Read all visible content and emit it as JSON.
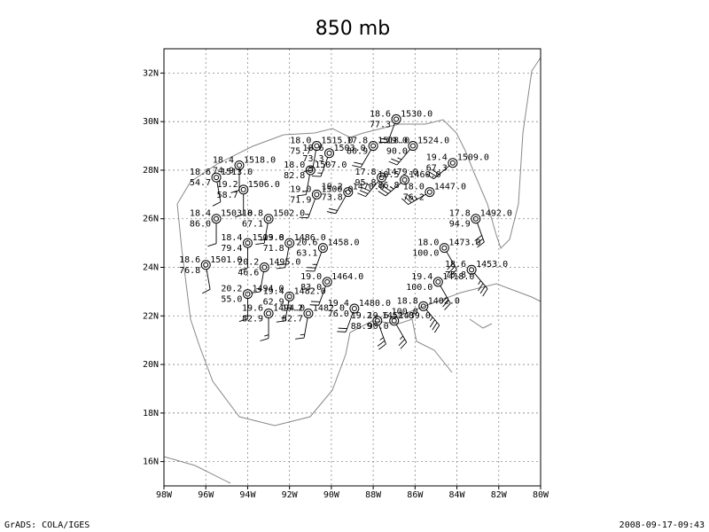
{
  "header": {
    "title": "850 mb"
  },
  "footer": {
    "left": "GrADS: COLA/IGES",
    "right": "2008-09-17-09:43"
  },
  "map": {
    "xlim": [
      -98,
      -80
    ],
    "ylim": [
      15,
      33
    ],
    "xticks": [
      {
        "value": -98,
        "label": "98W"
      },
      {
        "value": -96,
        "label": "96W"
      },
      {
        "value": -94,
        "label": "94W"
      },
      {
        "value": -92,
        "label": "92W"
      },
      {
        "value": -90,
        "label": "90W"
      },
      {
        "value": -88,
        "label": "88W"
      },
      {
        "value": -86,
        "label": "86W"
      },
      {
        "value": -84,
        "label": "84W"
      },
      {
        "value": -82,
        "label": "82W"
      },
      {
        "value": -80,
        "label": "80W"
      }
    ],
    "yticks": [
      {
        "value": 16,
        "label": "16N"
      },
      {
        "value": 18,
        "label": "18N"
      },
      {
        "value": 20,
        "label": "20N"
      },
      {
        "value": 22,
        "label": "22N"
      },
      {
        "value": 24,
        "label": "24N"
      },
      {
        "value": 26,
        "label": "26N"
      },
      {
        "value": 28,
        "label": "28N"
      },
      {
        "value": 30,
        "label": "30N"
      },
      {
        "value": 32,
        "label": "32N"
      }
    ],
    "grid": true,
    "stations": [
      {
        "lon": -86.9,
        "lat": 30.1,
        "temp": "18.6",
        "height": "1530.0",
        "rh": "77.3",
        "wind": [
          200,
          20
        ]
      },
      {
        "lon": -90.7,
        "lat": 29.0,
        "temp": "18.0",
        "height": "1515.0",
        "rh": "75.7",
        "wind": [
          190,
          15
        ]
      },
      {
        "lon": -90.1,
        "lat": 28.7,
        "temp": "18.6",
        "height": "1503.0",
        "rh": "73.3",
        "wind": [
          200,
          15
        ]
      },
      {
        "lon": -88.0,
        "lat": 29.0,
        "temp": "17.8",
        "height": "1518.0",
        "rh": "80.9",
        "wind": [
          210,
          20
        ]
      },
      {
        "lon": -86.1,
        "lat": 29.0,
        "temp": "19.0",
        "height": "1524.0",
        "rh": "90.0",
        "wind": [
          220,
          25
        ]
      },
      {
        "lon": -84.2,
        "lat": 28.3,
        "temp": "19.4",
        "height": "1509.0",
        "rh": "67.3",
        "wind": [
          230,
          30
        ]
      },
      {
        "lon": -94.4,
        "lat": 28.2,
        "temp": "18.4",
        "height": "1518.0",
        "rh": "74.9",
        "wind": [
          180,
          10
        ]
      },
      {
        "lon": -91.0,
        "lat": 28.0,
        "temp": "18.0",
        "height": "1507.0",
        "rh": "82.8",
        "wind": [
          190,
          15
        ]
      },
      {
        "lon": -95.5,
        "lat": 27.7,
        "temp": "18.6",
        "height": "1513.0",
        "rh": "54.7",
        "wind": [
          170,
          10
        ]
      },
      {
        "lon": -94.2,
        "lat": 27.2,
        "temp": "19.2",
        "height": "1506.0",
        "rh": "58.7",
        "wind": [
          180,
          10
        ]
      },
      {
        "lon": -90.7,
        "lat": 27.0,
        "temp": "19.0",
        "height": "1500.0",
        "rh": "71.9",
        "wind": [
          200,
          15
        ]
      },
      {
        "lon": -89.2,
        "lat": 27.1,
        "temp": "19.2",
        "height": "1470.0",
        "rh": "73.8",
        "wind": [
          210,
          20
        ]
      },
      {
        "lon": -87.6,
        "lat": 27.7,
        "temp": "17.8",
        "height": "1479.0",
        "rh": "95.8",
        "wind": [
          220,
          30
        ]
      },
      {
        "lon": -86.5,
        "lat": 27.6,
        "temp": "18.5",
        "height": "1460.0",
        "rh": "86.8",
        "wind": [
          230,
          35
        ]
      },
      {
        "lon": -85.3,
        "lat": 27.1,
        "temp": "18.0",
        "height": "1447.0",
        "rh": "76.2",
        "wind": [
          240,
          35
        ]
      },
      {
        "lon": -95.5,
        "lat": 26.0,
        "temp": "18.4",
        "height": "1503.0",
        "rh": "86.0",
        "wind": [
          180,
          10
        ]
      },
      {
        "lon": -93.0,
        "lat": 26.0,
        "temp": "18.8",
        "height": "1502.0",
        "rh": "67.1",
        "wind": [
          190,
          15
        ]
      },
      {
        "lon": -83.1,
        "lat": 26.0,
        "temp": "17.8",
        "height": "1492.0",
        "rh": "94.9",
        "wind": [
          160,
          30
        ]
      },
      {
        "lon": -94.0,
        "lat": 25.0,
        "temp": "18.4",
        "height": "1503.0",
        "rh": "79.4",
        "wind": [
          180,
          10
        ]
      },
      {
        "lon": -92.0,
        "lat": 25.0,
        "temp": "19.8",
        "height": "1486.0",
        "rh": "71.8",
        "wind": [
          190,
          20
        ]
      },
      {
        "lon": -90.4,
        "lat": 24.8,
        "temp": "20.6",
        "height": "1458.0",
        "rh": "63.1",
        "wind": [
          200,
          25
        ]
      },
      {
        "lon": -96.0,
        "lat": 24.1,
        "temp": "18.6",
        "height": "1501.0",
        "rh": "76.8",
        "wind": [
          170,
          10
        ]
      },
      {
        "lon": -93.2,
        "lat": 24.0,
        "temp": "20.2",
        "height": "1495.0",
        "rh": "46.6",
        "wind": [
          190,
          15
        ]
      },
      {
        "lon": -84.6,
        "lat": 24.8,
        "temp": "18.0",
        "height": "1473.0",
        "rh": "100.0",
        "wind": [
          150,
          30
        ]
      },
      {
        "lon": -83.3,
        "lat": 23.9,
        "temp": "18.6",
        "height": "1453.0",
        "rh": "75.8",
        "wind": [
          140,
          35
        ]
      },
      {
        "lon": -94.0,
        "lat": 22.9,
        "temp": "20.2",
        "height": "1494.0",
        "rh": "55.0",
        "wind": [
          180,
          15
        ]
      },
      {
        "lon": -92.0,
        "lat": 22.8,
        "temp": "19.4",
        "height": "1482.0",
        "rh": "62.9",
        "wind": [
          190,
          15
        ]
      },
      {
        "lon": -90.2,
        "lat": 23.4,
        "temp": "19.0",
        "height": "1464.0",
        "rh": "83.0",
        "wind": [
          200,
          20
        ]
      },
      {
        "lon": -84.9,
        "lat": 23.4,
        "temp": "19.4",
        "height": "1418.0",
        "rh": "100.0",
        "wind": [
          150,
          30
        ]
      },
      {
        "lon": -85.6,
        "lat": 22.4,
        "temp": "18.8",
        "height": "1402.0",
        "rh": "100.0",
        "wind": [
          140,
          35
        ]
      },
      {
        "lon": -93.0,
        "lat": 22.1,
        "temp": "19.6",
        "height": "1494.0",
        "rh": "82.9",
        "wind": [
          180,
          15
        ]
      },
      {
        "lon": -91.1,
        "lat": 22.1,
        "temp": "19.2",
        "height": "1482.0",
        "rh": "82.7",
        "wind": [
          190,
          15
        ]
      },
      {
        "lon": -88.9,
        "lat": 22.3,
        "temp": "19.4",
        "height": "1480.0",
        "rh": "76.0",
        "wind": [
          200,
          20
        ]
      },
      {
        "lon": -87.8,
        "lat": 21.8,
        "temp": "19.2",
        "height": "1452.0",
        "rh": "88.9",
        "wind": [
          160,
          25
        ]
      },
      {
        "lon": -87.0,
        "lat": 21.8,
        "temp": "19.6",
        "height": "1439.0",
        "rh": "90.0",
        "wind": [
          150,
          25
        ]
      }
    ]
  }
}
